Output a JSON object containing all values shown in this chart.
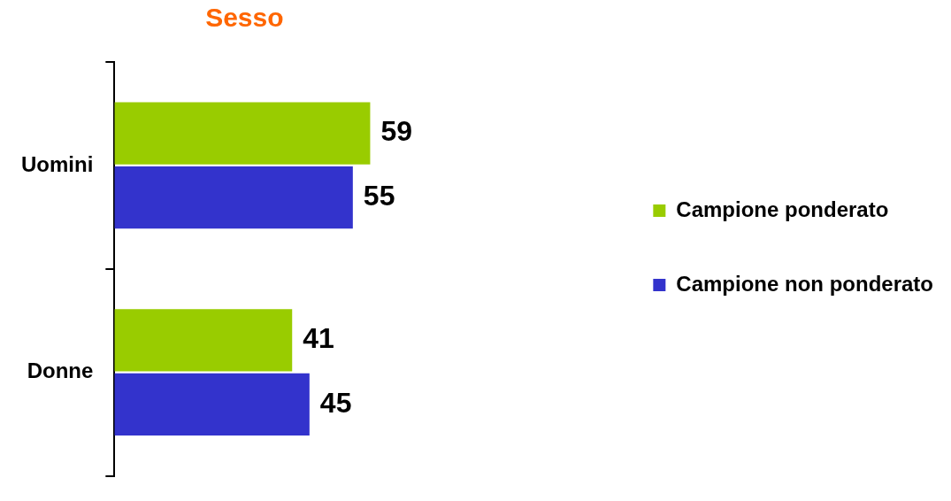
{
  "chart_data": {
    "type": "bar",
    "orientation": "horizontal",
    "title": "Sesso",
    "categories": [
      "Uomini",
      "Donne"
    ],
    "series": [
      {
        "name": "Campione ponderato",
        "color": "#99cc00",
        "values": [
          59,
          41
        ]
      },
      {
        "name": "Campione non ponderato",
        "color": "#3333cc",
        "values": [
          55,
          45
        ]
      }
    ],
    "tick_labels": "y",
    "data_labels": true,
    "legend": "right"
  }
}
